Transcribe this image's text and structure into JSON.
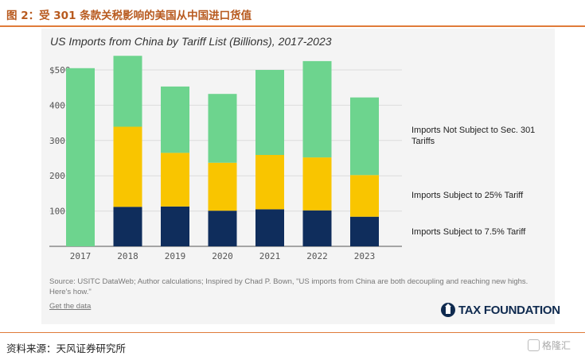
{
  "figure_title": "图 2：受 301 条款关税影响的美国从中国进口货值",
  "chart_data": {
    "type": "bar",
    "stacked": true,
    "title": "US Imports from China by Tariff List (Billions), 2017-2023",
    "categories": [
      "2017",
      "2018",
      "2019",
      "2020",
      "2021",
      "2022",
      "2023"
    ],
    "series": [
      {
        "name": "Imports Subject to 7.5% Tariff",
        "color": "#0f2d5c",
        "values": [
          0,
          112,
          113,
          101,
          105,
          102,
          84
        ]
      },
      {
        "name": "Imports Subject to 25% Tariff",
        "color": "#f9c500",
        "values": [
          0,
          227,
          152,
          136,
          154,
          150,
          118
        ]
      },
      {
        "name": "Imports Not Subject to Sec. 301 Tariffs",
        "color": "#6dd48e",
        "values": [
          505,
          201,
          188,
          195,
          241,
          273,
          220
        ]
      }
    ],
    "yticks": [
      "$500",
      "400",
      "300",
      "200",
      "100"
    ],
    "ylim": [
      0,
      545
    ],
    "grid": true,
    "legend_placement": "right"
  },
  "legend_labels": {
    "not_subject_line1": "Imports Not Subject to Sec. 301",
    "not_subject_line2": "Tariffs",
    "subject_25": "Imports Subject to 25% Tariff",
    "subject_75": "Imports Subject to 7.5% Tariff"
  },
  "source_text": "Source: USITC DataWeb; Author calculations; Inspired by Chad P. Bown, \"US imports from China are both decoupling and reaching new highs. Here's how.\"",
  "get_data_label": "Get the data",
  "logo_text": "TAX FOUNDATION",
  "footer_source": "资料来源：天风证券研究所",
  "watermark": "格隆汇"
}
